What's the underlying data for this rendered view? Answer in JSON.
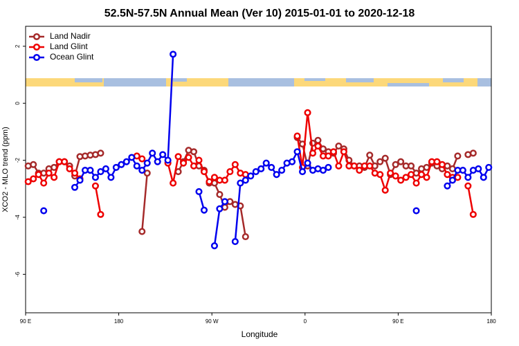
{
  "chart_data": {
    "type": "line",
    "title": "52.5N-57.5N Annual Mean (Ver 10)   2015-01-01 to 2020-12-18",
    "x_label": "Longitude",
    "y_label": "XCO2 - MLO trend (ppm)",
    "x": [
      92.5,
      97.5,
      102.5,
      107.5,
      112.5,
      117.5,
      122.5,
      127.5,
      132.5,
      137.5,
      142.5,
      147.5,
      152.5,
      157.5,
      162.5,
      167.5,
      172.5,
      177.5,
      182.5,
      187.5,
      192.5,
      197.5,
      202.5,
      207.5,
      212.5,
      217.5,
      222.5,
      227.5,
      232.5,
      237.5,
      242.5,
      247.5,
      252.5,
      257.5,
      262.5,
      267.5,
      272.5,
      277.5,
      282.5,
      287.5,
      292.5,
      297.5,
      302.5,
      307.5,
      312.5,
      317.5,
      322.5,
      327.5,
      332.5,
      337.5,
      342.5,
      347.5,
      352.5,
      357.5,
      362.5,
      367.5,
      372.5,
      377.5,
      382.5,
      387.5,
      392.5,
      397.5,
      402.5,
      407.5,
      412.5,
      417.5,
      422.5,
      427.5,
      432.5,
      437.5,
      442.5,
      447.5,
      452.5,
      457.5,
      462.5,
      467.5,
      472.5,
      477.5,
      482.5,
      487.5,
      492.5,
      497.5,
      502.5,
      507.5,
      512.5,
      517.5,
      522.5,
      527.5,
      532.5,
      537.5
    ],
    "xlim": [
      90,
      540
    ],
    "xticks": [
      {
        "value": 90,
        "label": "90 E"
      },
      {
        "value": 180,
        "label": "180"
      },
      {
        "value": 270,
        "label": "90 W"
      },
      {
        "value": 360,
        "label": "0"
      },
      {
        "value": 450,
        "label": "90 E"
      },
      {
        "value": 540,
        "label": "180"
      }
    ],
    "ylim": [
      -7.35,
      2.7
    ],
    "yticks": [
      2,
      0,
      -2,
      -4,
      -6
    ],
    "legend": "top-left",
    "series": [
      {
        "name": "Land Nadir",
        "color": "#a52a2a",
        "values": [
          -2.2,
          -2.15,
          -2.45,
          -2.45,
          -2.3,
          -2.25,
          -2.05,
          -2.05,
          -2.2,
          -2.55,
          -1.87,
          -1.85,
          -1.82,
          -1.8,
          -1.75,
          null,
          null,
          null,
          null,
          null,
          null,
          null,
          -4.5,
          -2.45,
          null,
          null,
          null,
          null,
          null,
          -2.4,
          -2.05,
          -1.65,
          -1.7,
          -2.2,
          -2.35,
          -2.8,
          -2.8,
          -3.2,
          -3.65,
          -3.45,
          -3.55,
          -3.6,
          -4.68,
          null,
          null,
          null,
          null,
          null,
          null,
          null,
          null,
          null,
          -1.2,
          -1.43,
          -2.2,
          -1.4,
          -1.3,
          -1.6,
          -1.7,
          -1.75,
          -1.5,
          -1.6,
          -2.0,
          -2.2,
          -2.2,
          -2.25,
          -1.82,
          -2.2,
          -2.05,
          -1.93,
          -2.5,
          -2.15,
          -2.05,
          -2.2,
          -2.2,
          -2.45,
          -2.3,
          -2.25,
          -2.1,
          -2.2,
          -2.3,
          -2.2,
          -2.3,
          -1.85,
          null,
          -1.8,
          -1.75,
          null,
          null,
          null
        ]
      },
      {
        "name": "Land Glint",
        "color": "#ee0000",
        "values": [
          -2.75,
          -2.65,
          -2.5,
          -2.8,
          -2.45,
          -2.6,
          -2.05,
          -2.05,
          -2.3,
          -2.45,
          -2.65,
          null,
          null,
          -2.9,
          -3.9,
          null,
          null,
          null,
          null,
          null,
          null,
          -1.85,
          -1.95,
          null,
          null,
          null,
          null,
          -2.1,
          -2.8,
          -1.87,
          -2.1,
          -1.9,
          -2.2,
          -2.0,
          -2.4,
          -2.75,
          -2.6,
          -2.7,
          -2.7,
          -2.4,
          -2.15,
          -2.45,
          -2.5,
          null,
          null,
          null,
          null,
          null,
          null,
          null,
          null,
          null,
          -1.15,
          -2.25,
          -0.33,
          -1.75,
          -1.5,
          -1.85,
          -1.85,
          -1.7,
          -2.2,
          -1.7,
          -2.2,
          -2.2,
          -2.35,
          -2.2,
          -2.2,
          -2.45,
          -2.5,
          -3.05,
          -2.45,
          -2.55,
          -2.7,
          -2.6,
          -2.5,
          -2.8,
          -2.5,
          -2.6,
          -2.05,
          -2.05,
          -2.15,
          -2.5,
          -2.6,
          -2.6,
          null,
          -2.9,
          -3.9,
          null,
          null,
          null
        ]
      },
      {
        "name": "Ocean Glint",
        "color": "#0000ee",
        "values": [
          null,
          null,
          null,
          -3.77,
          null,
          null,
          null,
          null,
          null,
          -2.95,
          -2.7,
          -2.35,
          -2.35,
          -2.6,
          -2.4,
          -2.3,
          -2.6,
          -2.25,
          -2.15,
          -2.05,
          -1.9,
          -2.2,
          -2.35,
          -2.1,
          -1.75,
          -2.05,
          -1.8,
          -2.0,
          1.72,
          null,
          null,
          null,
          null,
          -3.1,
          -3.75,
          null,
          -5.0,
          -3.7,
          -3.45,
          null,
          -4.85,
          -2.8,
          -2.7,
          -2.55,
          -2.4,
          -2.3,
          -2.1,
          -2.25,
          -2.5,
          -2.35,
          -2.1,
          -2.05,
          -1.7,
          -2.4,
          -2.1,
          -2.35,
          -2.3,
          -2.35,
          -2.25,
          null,
          null,
          null,
          null,
          null,
          null,
          null,
          null,
          null,
          null,
          null,
          null,
          null,
          null,
          null,
          null,
          -3.77,
          null,
          null,
          null,
          null,
          null,
          -2.9,
          -2.7,
          -2.35,
          -2.35,
          -2.6,
          -2.35,
          -2.3,
          -2.6,
          -2.25
        ]
      }
    ]
  }
}
